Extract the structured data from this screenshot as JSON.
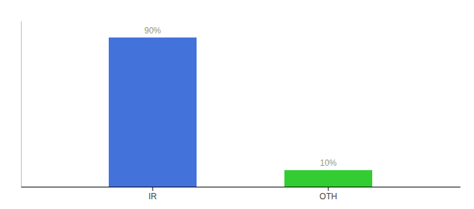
{
  "chart_data": {
    "type": "bar",
    "categories": [
      "IR",
      "OTH"
    ],
    "values": [
      90,
      10
    ],
    "value_labels": [
      "90%",
      "10%"
    ],
    "colors": [
      "#4472db",
      "#33cc33"
    ],
    "ylim": [
      0,
      100
    ],
    "data_labels": true,
    "tick_labels": "x"
  }
}
